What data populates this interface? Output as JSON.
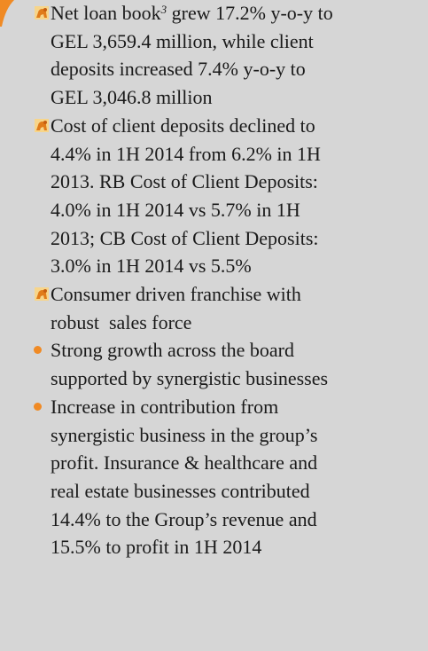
{
  "icon_bullets": [
    {
      "lead": "Net loan book",
      "sup": "3",
      "lines": [
        " grew 17.2% y-o-y to",
        "GEL 3,659.4 million, while client",
        "deposits increased 7.4% y-o-y to",
        "GEL 3,046.8 million"
      ]
    },
    {
      "lines": [
        "Cost of client deposits declined to",
        "4.4% in 1H 2014 from 6.2% in 1H",
        "2013. RB Cost of Client Deposits:",
        "4.0% in 1H 2014 vs 5.7% in 1H",
        "2013; CB Cost of Client Deposits:",
        "3.0% in 1H 2014 vs 5.5%"
      ]
    },
    {
      "lines": [
        "Consumer driven franchise with",
        "robust  sales force"
      ]
    }
  ],
  "dot_bullets": [
    {
      "lines": [
        "Strong growth across the board",
        "supported by synergistic businesses"
      ]
    },
    {
      "lines": [
        "Increase in contribution from",
        "synergistic business in the group’s",
        "profit. Insurance & healthcare and",
        "real estate businesses contributed",
        "14.4% to the Group’s revenue and",
        "15.5% to profit in 1H 2014"
      ]
    }
  ]
}
